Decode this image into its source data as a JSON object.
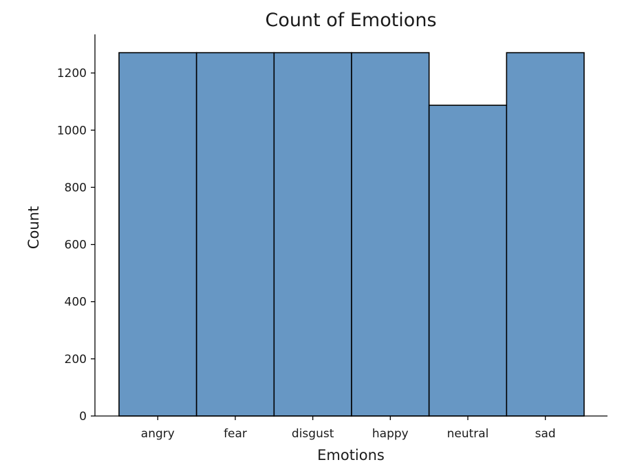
{
  "chart_data": {
    "type": "bar",
    "title": "Count of Emotions",
    "xlabel": "Emotions",
    "ylabel": "Count",
    "categories": [
      "angry",
      "fear",
      "disgust",
      "happy",
      "neutral",
      "sad"
    ],
    "values": [
      1271,
      1271,
      1271,
      1271,
      1087,
      1271
    ],
    "ylim": [
      0,
      1335
    ],
    "yticks": [
      0,
      200,
      400,
      600,
      800,
      1000,
      1200
    ],
    "ytick_labels": [
      "0",
      "200",
      "400",
      "600",
      "800",
      "1000",
      "1200"
    ],
    "grid": false,
    "legend": "none",
    "bar_color": "#6797c4",
    "edge_color": "#000000"
  }
}
